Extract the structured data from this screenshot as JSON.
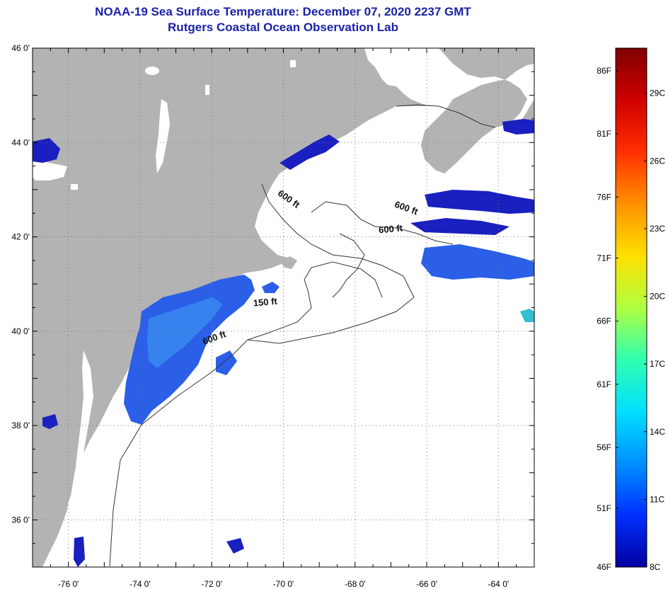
{
  "title": {
    "line1": "NOAA-19 Sea Surface Temperature:  December 07, 2020 2237 GMT",
    "line2": "Rutgers Coastal Ocean Observation Lab"
  },
  "colors": {
    "land": "#b3b3b3",
    "ocean_masked": "#ffffff",
    "sst_dark": "#1a1fc0",
    "sst_mid": "#2b5fe8",
    "sst_light": "#3a8cf0",
    "title": "#1a22a8",
    "grid": "#777777"
  },
  "map": {
    "lon_range": [
      -77,
      -63
    ],
    "lat_range": [
      35,
      46
    ],
    "lon_ticks": [
      {
        "value": -76,
        "label": "-76 0'"
      },
      {
        "value": -74,
        "label": "-74 0'"
      },
      {
        "value": -72,
        "label": "-72 0'"
      },
      {
        "value": -70,
        "label": "-70 0'"
      },
      {
        "value": -68,
        "label": "-68 0'"
      },
      {
        "value": -66,
        "label": "-66 0'"
      },
      {
        "value": -64,
        "label": "-64 0'"
      }
    ],
    "lat_ticks": [
      {
        "value": 46,
        "label": "46 0'"
      },
      {
        "value": 44,
        "label": "44 0'"
      },
      {
        "value": 42,
        "label": "42 0'"
      },
      {
        "value": 40,
        "label": "40 0'"
      },
      {
        "value": 38,
        "label": "38 0'"
      },
      {
        "value": 36,
        "label": "36 0'"
      }
    ],
    "contour_labels": [
      {
        "text": "600 ft",
        "lon": -69.9,
        "lat": 42.75,
        "rotate": 35
      },
      {
        "text": "600 ft",
        "lon": -66.6,
        "lat": 42.55,
        "rotate": 20
      },
      {
        "text": "600 ft",
        "lon": -67.0,
        "lat": 42.1,
        "rotate": -5
      },
      {
        "text": "150 ft",
        "lon": -70.5,
        "lat": 40.55,
        "rotate": -5
      },
      {
        "text": "600 ft",
        "lon": -71.9,
        "lat": 39.8,
        "rotate": -20
      }
    ]
  },
  "colorbar": {
    "top_value_c": 31,
    "bottom_value_c": 8,
    "f_labels": [
      {
        "label": "86F",
        "value_c": 30.0
      },
      {
        "label": "81F",
        "value_c": 27.2
      },
      {
        "label": "76F",
        "value_c": 24.4
      },
      {
        "label": "71F",
        "value_c": 21.7
      },
      {
        "label": "66F",
        "value_c": 18.9
      },
      {
        "label": "61F",
        "value_c": 16.1
      },
      {
        "label": "56F",
        "value_c": 13.3
      },
      {
        "label": "51F",
        "value_c": 10.6
      },
      {
        "label": "46F",
        "value_c": 8.0
      }
    ],
    "c_labels": [
      {
        "label": "29C",
        "value_c": 29
      },
      {
        "label": "26C",
        "value_c": 26
      },
      {
        "label": "23C",
        "value_c": 23
      },
      {
        "label": "20C",
        "value_c": 20
      },
      {
        "label": "17C",
        "value_c": 17
      },
      {
        "label": "14C",
        "value_c": 14
      },
      {
        "label": "11C",
        "value_c": 11
      },
      {
        "label": "8C",
        "value_c": 8
      }
    ],
    "stops": [
      "#800000",
      "#d00000",
      "#ff3000",
      "#ff9000",
      "#ffe000",
      "#b0ff40",
      "#30ffb0",
      "#00e0ff",
      "#0090ff",
      "#0030ff",
      "#0000a0"
    ]
  }
}
